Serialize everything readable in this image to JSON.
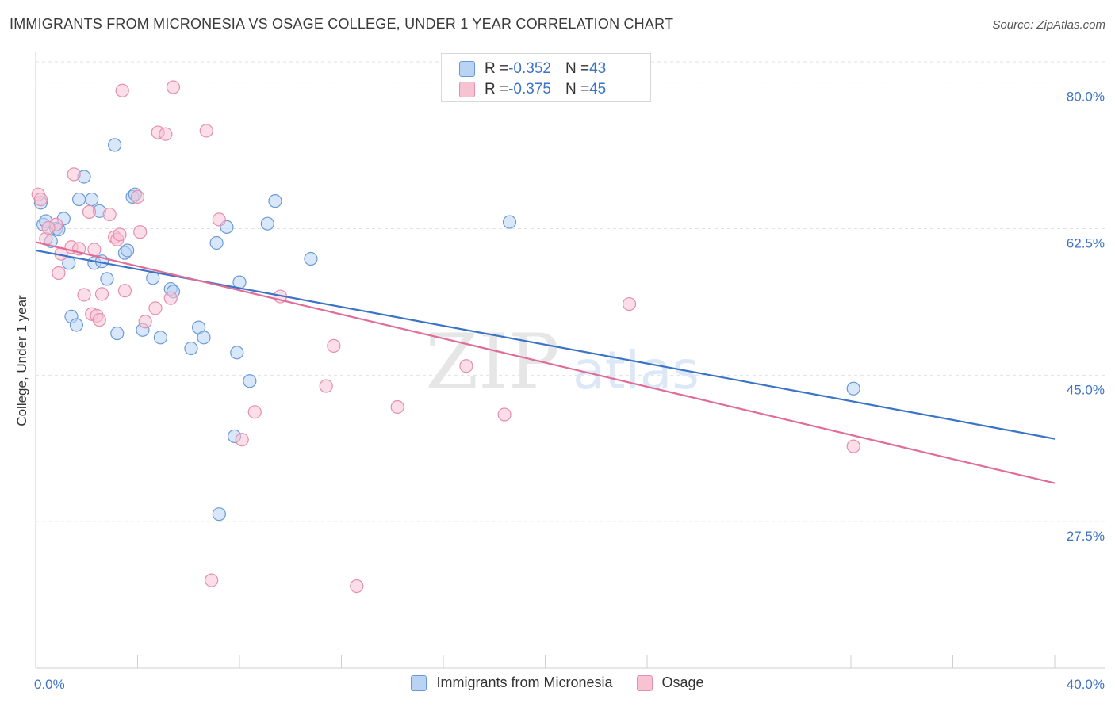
{
  "title": "IMMIGRANTS FROM MICRONESIA VS OSAGE COLLEGE, UNDER 1 YEAR CORRELATION CHART",
  "source": "Source: ZipAtlas.com",
  "watermark": {
    "zip": "ZIP",
    "atlas": "atlas"
  },
  "colors": {
    "blue": "#3b73c6",
    "blue_fill": "#b9d3f5",
    "blue_stroke": "#6a9ad6",
    "pink": "#e06d98",
    "pink_fill": "#f7c3d3",
    "pink_stroke": "#e58fae",
    "axis_text": "#3b73c6",
    "grid": "#e2e2e2"
  },
  "stats": [
    {
      "r_label": "R = ",
      "r_value": "-0.352",
      "n_label": "N = ",
      "n_value": "43",
      "color": "blue"
    },
    {
      "r_label": "R = ",
      "r_value": "-0.375",
      "n_label": "N = ",
      "n_value": "45",
      "color": "pink"
    }
  ],
  "chart_data": {
    "type": "scatter",
    "title": "IMMIGRANTS FROM MICRONESIA VS OSAGE COLLEGE, UNDER 1 YEAR CORRELATION CHART",
    "xlabel": "",
    "ylabel": "College, Under 1 year",
    "xlim": [
      0,
      40
    ],
    "ylim": [
      10,
      83
    ],
    "x_tick_labels": [
      "0.0%",
      "40.0%"
    ],
    "y_ticks": [
      27.5,
      45.0,
      62.5,
      80.0
    ],
    "y_tick_labels": [
      "27.5%",
      "45.0%",
      "62.5%",
      "80.0%"
    ],
    "grid": true,
    "legend_position": "bottom",
    "series": [
      {
        "name": "Immigrants from Micronesia",
        "color": "blue",
        "trend": {
          "x": [
            0,
            40
          ],
          "y": [
            59.9,
            37.4
          ]
        },
        "points": [
          [
            0.2,
            65.6
          ],
          [
            0.3,
            63.0
          ],
          [
            0.6,
            61.0
          ],
          [
            0.8,
            62.5
          ],
          [
            0.9,
            62.4
          ],
          [
            1.1,
            63.7
          ],
          [
            1.3,
            58.4
          ],
          [
            1.4,
            52.0
          ],
          [
            1.6,
            51.0
          ],
          [
            1.7,
            66.0
          ],
          [
            1.9,
            68.7
          ],
          [
            2.2,
            66.0
          ],
          [
            2.3,
            58.4
          ],
          [
            2.5,
            64.6
          ],
          [
            2.6,
            58.6
          ],
          [
            2.8,
            56.5
          ],
          [
            3.1,
            72.5
          ],
          [
            3.2,
            50.0
          ],
          [
            3.5,
            59.6
          ],
          [
            3.6,
            59.9
          ],
          [
            3.8,
            66.3
          ],
          [
            3.9,
            66.6
          ],
          [
            4.2,
            50.4
          ],
          [
            4.6,
            56.6
          ],
          [
            4.9,
            49.5
          ],
          [
            5.3,
            55.3
          ],
          [
            5.4,
            55.0
          ],
          [
            6.1,
            48.2
          ],
          [
            6.4,
            50.7
          ],
          [
            6.6,
            49.5
          ],
          [
            7.1,
            60.8
          ],
          [
            7.5,
            62.7
          ],
          [
            7.8,
            37.7
          ],
          [
            7.9,
            47.7
          ],
          [
            8.0,
            56.1
          ],
          [
            8.4,
            44.3
          ],
          [
            9.1,
            63.1
          ],
          [
            9.4,
            65.8
          ],
          [
            10.8,
            58.9
          ],
          [
            18.6,
            63.3
          ],
          [
            7.2,
            28.4
          ],
          [
            32.1,
            43.4
          ],
          [
            0.4,
            63.4
          ]
        ]
      },
      {
        "name": "Osage",
        "color": "pink",
        "trend": {
          "x": [
            0,
            40
          ],
          "y": [
            60.9,
            32.1
          ]
        },
        "points": [
          [
            0.1,
            66.6
          ],
          [
            0.2,
            66.0
          ],
          [
            0.4,
            61.3
          ],
          [
            0.8,
            63.0
          ],
          [
            0.9,
            57.2
          ],
          [
            1.0,
            59.5
          ],
          [
            1.4,
            60.3
          ],
          [
            1.5,
            69.0
          ],
          [
            1.7,
            60.1
          ],
          [
            1.9,
            54.6
          ],
          [
            2.1,
            64.5
          ],
          [
            2.2,
            52.3
          ],
          [
            2.4,
            52.1
          ],
          [
            2.5,
            51.6
          ],
          [
            2.6,
            54.7
          ],
          [
            2.9,
            64.2
          ],
          [
            3.1,
            61.5
          ],
          [
            3.2,
            61.2
          ],
          [
            3.4,
            79.0
          ],
          [
            3.5,
            55.1
          ],
          [
            4.0,
            66.3
          ],
          [
            4.1,
            62.1
          ],
          [
            4.3,
            51.4
          ],
          [
            4.7,
            53.0
          ],
          [
            4.8,
            74.0
          ],
          [
            5.1,
            73.8
          ],
          [
            5.3,
            54.2
          ],
          [
            5.4,
            79.4
          ],
          [
            6.7,
            74.2
          ],
          [
            6.9,
            20.5
          ],
          [
            7.2,
            63.6
          ],
          [
            8.1,
            37.3
          ],
          [
            8.6,
            40.6
          ],
          [
            9.6,
            54.4
          ],
          [
            11.4,
            43.7
          ],
          [
            11.7,
            48.5
          ],
          [
            12.6,
            19.8
          ],
          [
            14.2,
            41.2
          ],
          [
            16.9,
            46.1
          ],
          [
            18.4,
            40.3
          ],
          [
            23.3,
            53.5
          ],
          [
            32.1,
            36.5
          ],
          [
            0.5,
            62.6
          ],
          [
            2.3,
            60.0
          ],
          [
            3.3,
            61.8
          ]
        ]
      }
    ]
  }
}
